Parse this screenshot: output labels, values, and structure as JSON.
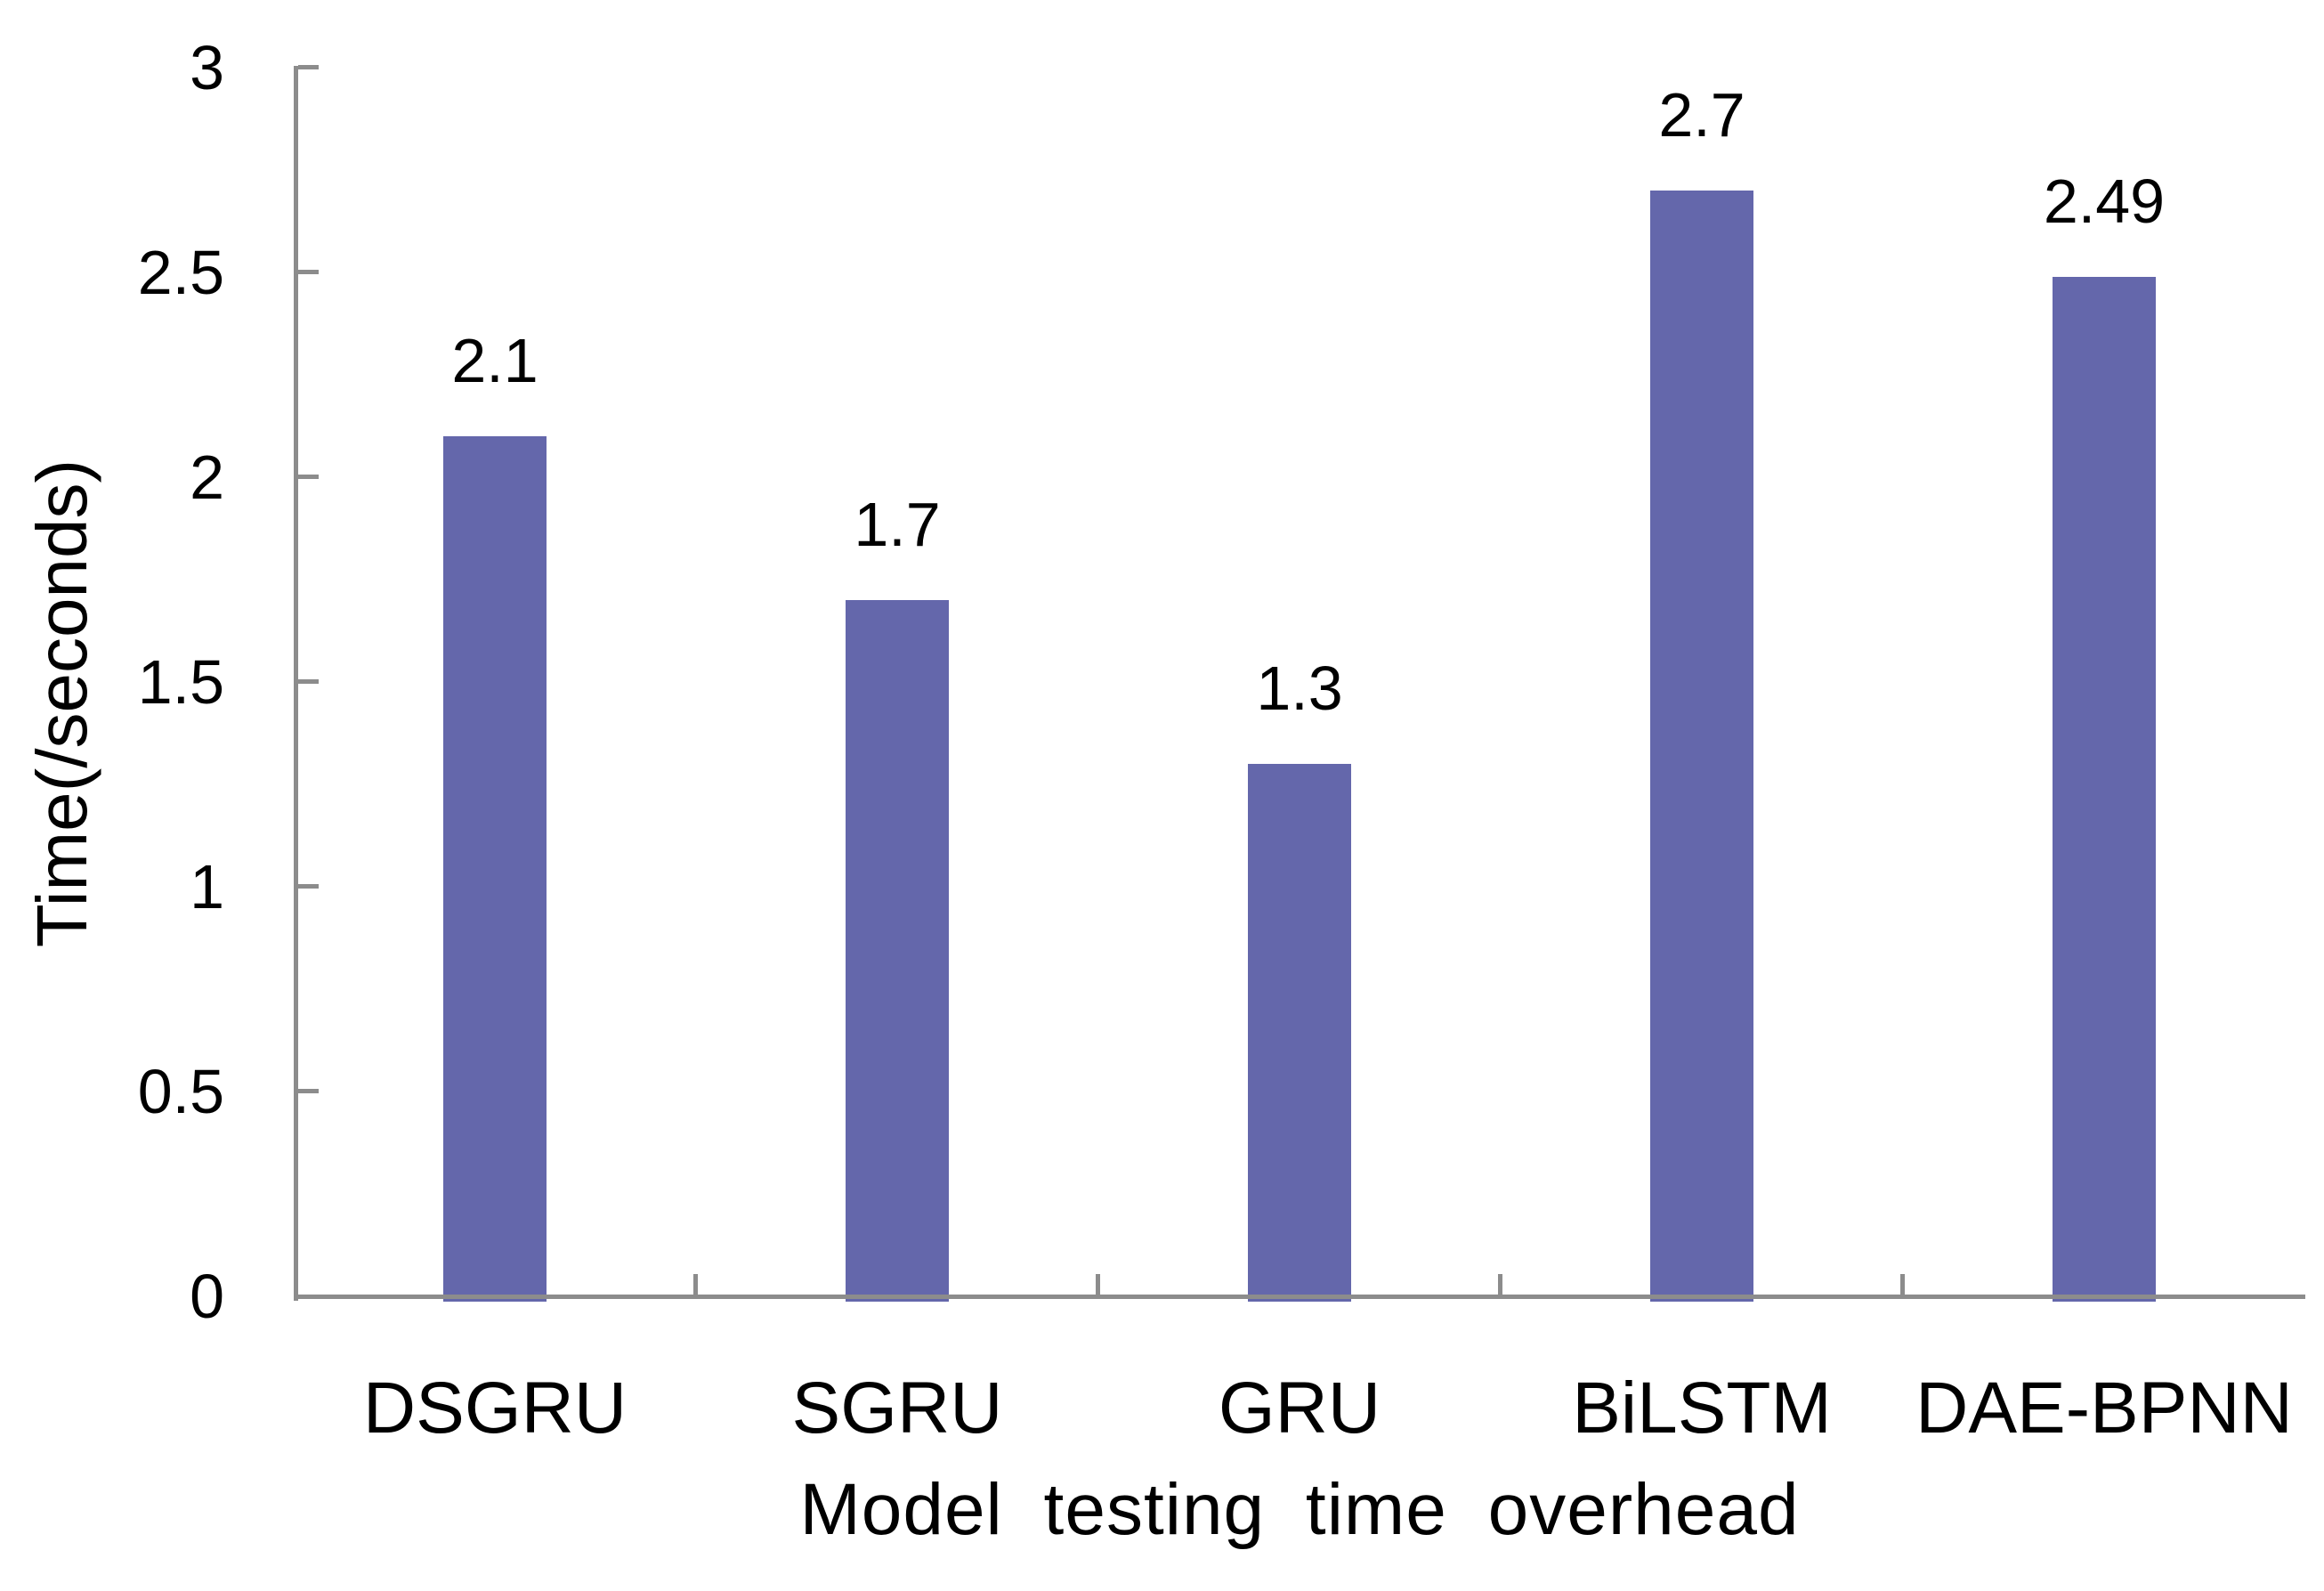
{
  "chart_data": {
    "type": "bar",
    "title": "",
    "categories": [
      "DSGRU",
      "SGRU",
      "GRU",
      "BiLSTM",
      "DAE-BPNN"
    ],
    "values": [
      2.1,
      1.7,
      1.3,
      2.7,
      2.49
    ],
    "value_labels": [
      "2.1",
      "1.7",
      "1.3",
      "2.7",
      "2.49"
    ],
    "xlabel": "Model testing time overhead",
    "ylabel": "Time(/seconds)",
    "ylim": [
      0,
      3
    ],
    "yticks": [
      0,
      0.5,
      1,
      1.5,
      2,
      2.5,
      3
    ],
    "ytick_labels": [
      "0",
      "0.5",
      "1",
      "1.5",
      "2",
      "2.5",
      "3"
    ],
    "grid": false,
    "legend": null,
    "bar_color": "#6467AB",
    "axis_color": "#8C8C8C",
    "text_color": "#000000",
    "background_color": "#ffffff"
  }
}
